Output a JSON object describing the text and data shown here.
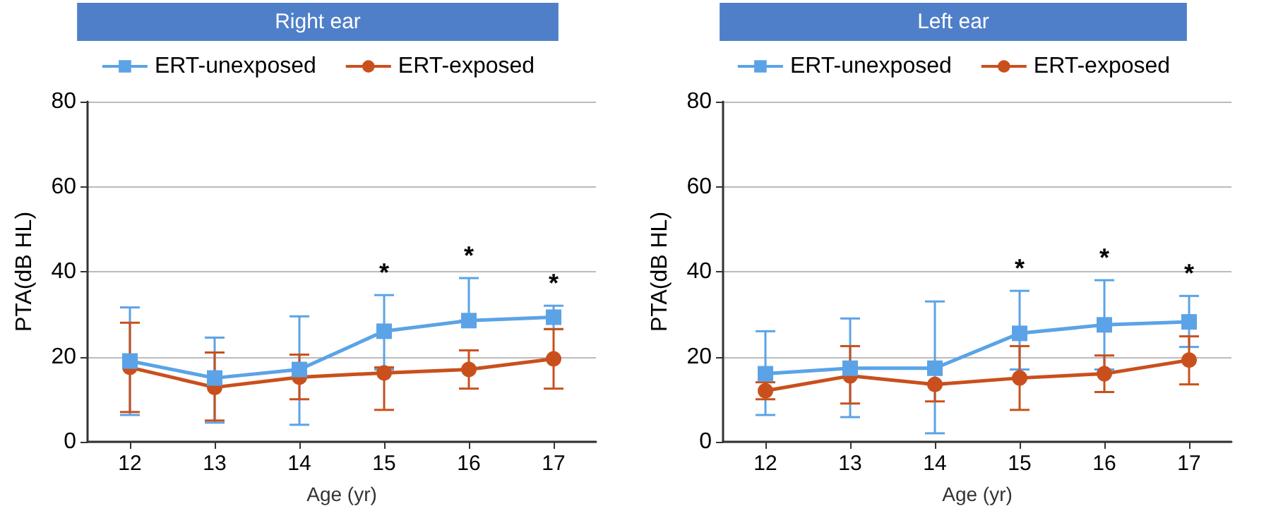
{
  "chart_data": [
    {
      "type": "line",
      "title": "Right ear",
      "xlabel": "Age (yr)",
      "ylabel": "PTA(dB HL)",
      "categories": [
        "12",
        "13",
        "14",
        "15",
        "16",
        "17"
      ],
      "ylim": [
        0,
        80
      ],
      "yticks": [
        0,
        20,
        40,
        60,
        80
      ],
      "grid": "y",
      "legend": "top",
      "line_style": "solid",
      "series": [
        {
          "name": "ERT-unexposed",
          "color": "#5ba3e6",
          "marker": "square",
          "values": [
            19,
            15,
            17,
            26,
            28.5,
            29.3
          ],
          "errors": [
            [
              6.3,
              31.6
            ],
            [
              4.5,
              24.5
            ],
            [
              4,
              29.5
            ],
            [
              17,
              34.5
            ],
            [
              28.5,
              38.5
            ],
            [
              26.5,
              32
            ]
          ]
        },
        {
          "name": "ERT-exposed",
          "color": "#c9501c",
          "marker": "circle",
          "values": [
            17.5,
            12.8,
            15.2,
            16.2,
            17,
            19.5
          ],
          "errors": [
            [
              7,
              28
            ],
            [
              5,
              21
            ],
            [
              10,
              20.5
            ],
            [
              7.5,
              17.5
            ],
            [
              12.5,
              21.5
            ],
            [
              12.5,
              26.5
            ]
          ]
        }
      ],
      "annotations": [
        "*",
        "*",
        "*"
      ]
    },
    {
      "type": "line",
      "title": "Left ear",
      "xlabel": "Age (yr)",
      "ylabel": "PTA(dB HL)",
      "categories": [
        "12",
        "13",
        "14",
        "15",
        "16",
        "17"
      ],
      "ylim": [
        0,
        80
      ],
      "yticks": [
        0,
        20,
        40,
        60,
        80
      ],
      "grid": "y",
      "legend": "top",
      "line_style": "solid",
      "series": [
        {
          "name": "ERT-unexposed",
          "color": "#5ba3e6",
          "marker": "square",
          "values": [
            16,
            17.3,
            17.3,
            25.5,
            27.5,
            28.2
          ],
          "errors": [
            [
              6.3,
              26
            ],
            [
              5.8,
              29
            ],
            [
              2,
              33
            ],
            [
              17,
              35.5
            ],
            [
              17,
              38
            ],
            [
              22.3,
              34.3
            ]
          ]
        },
        {
          "name": "ERT-exposed",
          "color": "#c9501c",
          "marker": "circle",
          "values": [
            12,
            15.5,
            13.5,
            15,
            16,
            19.2
          ],
          "errors": [
            [
              10,
              14
            ],
            [
              9,
              22.5
            ],
            [
              9.5,
              13.5
            ],
            [
              7.5,
              22.5
            ],
            [
              11.7,
              20.3
            ],
            [
              13.5,
              24.8
            ]
          ]
        }
      ],
      "annotations": [
        "*",
        "*",
        "*"
      ]
    }
  ]
}
